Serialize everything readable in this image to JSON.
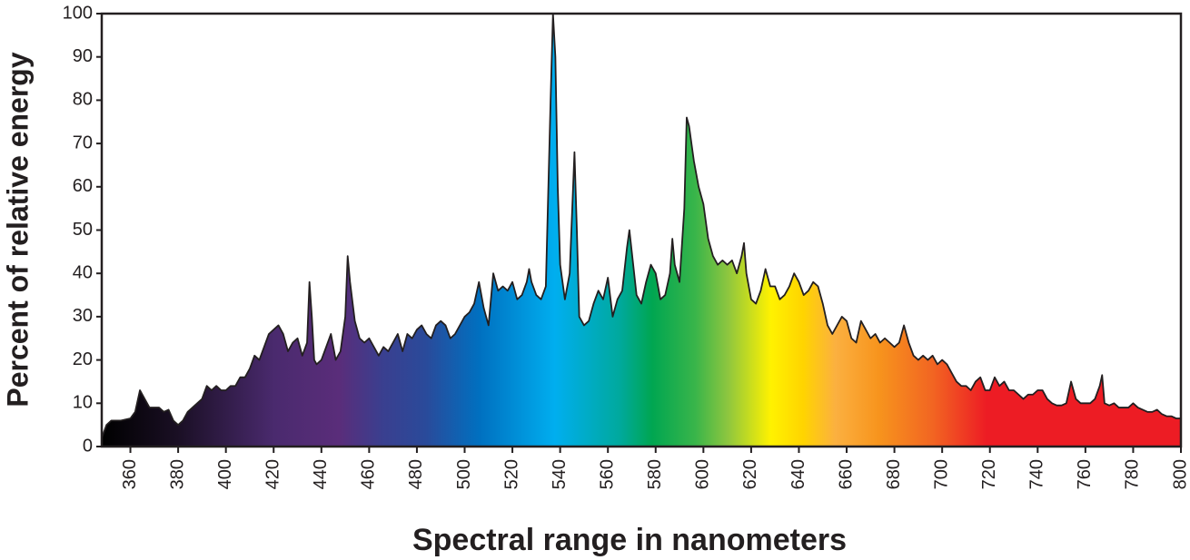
{
  "chart_data": {
    "type": "area",
    "xlabel": "Spectral range in nanometers",
    "ylabel": "Percent of relative energy",
    "xlim": [
      348,
      800
    ],
    "ylim": [
      0,
      100
    ],
    "xticks": [
      360,
      380,
      400,
      420,
      440,
      460,
      480,
      500,
      520,
      540,
      560,
      580,
      600,
      620,
      640,
      660,
      680,
      700,
      720,
      740,
      760,
      780,
      800
    ],
    "yticks": [
      0,
      10,
      20,
      30,
      40,
      50,
      60,
      70,
      80,
      90,
      100
    ],
    "x": [
      348,
      350,
      352,
      356,
      360,
      362,
      364,
      366,
      368,
      372,
      374,
      376,
      378,
      380,
      382,
      384,
      386,
      388,
      390,
      392,
      394,
      396,
      398,
      400,
      402,
      404,
      406,
      408,
      410,
      412,
      414,
      416,
      418,
      420,
      422,
      424,
      426,
      428,
      430,
      432,
      434,
      435,
      436,
      437,
      438,
      440,
      442,
      444,
      446,
      448,
      450,
      451,
      452,
      454,
      456,
      458,
      460,
      462,
      464,
      466,
      468,
      470,
      472,
      474,
      476,
      478,
      480,
      482,
      484,
      486,
      488,
      490,
      492,
      494,
      496,
      498,
      500,
      502,
      504,
      506,
      508,
      510,
      512,
      514,
      516,
      518,
      520,
      522,
      524,
      526,
      527,
      528,
      530,
      532,
      534,
      536,
      537,
      538,
      539,
      540,
      542,
      544,
      546,
      547,
      548,
      550,
      552,
      554,
      556,
      558,
      560,
      562,
      564,
      566,
      568,
      569,
      570,
      572,
      574,
      576,
      578,
      580,
      582,
      584,
      586,
      587,
      588,
      590,
      592,
      593,
      594,
      596,
      598,
      600,
      602,
      604,
      606,
      608,
      610,
      612,
      614,
      616,
      617,
      618,
      620,
      622,
      624,
      626,
      628,
      630,
      632,
      634,
      636,
      638,
      640,
      642,
      644,
      646,
      648,
      650,
      652,
      654,
      656,
      658,
      660,
      662,
      664,
      666,
      668,
      670,
      672,
      674,
      676,
      678,
      680,
      682,
      684,
      686,
      688,
      690,
      692,
      694,
      696,
      698,
      700,
      702,
      704,
      706,
      708,
      710,
      712,
      714,
      716,
      718,
      720,
      722,
      724,
      726,
      728,
      730,
      732,
      734,
      736,
      738,
      740,
      742,
      744,
      746,
      748,
      750,
      752,
      754,
      756,
      758,
      760,
      762,
      764,
      766,
      767,
      768,
      770,
      772,
      774,
      776,
      778,
      780,
      782,
      784,
      786,
      788,
      790,
      792,
      794,
      796,
      798,
      800
    ],
    "values": [
      2,
      5,
      6,
      6,
      6.5,
      8,
      13,
      11,
      9,
      9,
      8,
      8.5,
      6,
      5,
      6,
      8,
      9,
      10,
      11,
      14,
      13,
      14,
      13,
      13,
      14,
      14,
      16,
      16,
      18,
      21,
      20,
      23,
      26,
      27,
      28,
      26,
      22,
      24,
      25,
      21,
      24,
      38,
      30,
      20,
      19,
      20,
      23,
      26,
      20,
      22,
      30,
      44,
      38,
      29,
      25,
      24,
      25,
      23,
      21,
      23,
      22,
      24,
      26,
      22,
      26,
      25,
      27,
      28,
      26,
      25,
      28,
      29,
      28,
      25,
      26,
      28,
      30,
      31,
      33,
      38,
      32,
      28,
      40,
      36,
      37,
      36,
      38,
      34,
      35,
      38,
      41,
      38,
      35,
      34,
      37,
      80,
      100,
      90,
      60,
      42,
      34,
      40,
      68,
      50,
      30,
      28,
      29,
      33,
      36,
      34,
      39,
      30,
      34,
      36,
      46,
      50,
      45,
      35,
      33,
      38,
      42,
      40,
      34,
      35,
      40,
      48,
      42,
      38,
      55,
      76,
      74,
      66,
      60,
      56,
      48,
      44,
      42,
      43,
      42,
      43,
      40,
      44,
      47,
      40,
      34,
      33,
      36,
      41,
      37,
      37,
      34,
      35,
      37,
      40,
      38,
      35,
      36,
      38,
      37,
      33,
      28,
      26,
      28,
      30,
      29,
      25,
      24,
      29,
      27,
      25,
      26,
      24,
      25,
      24,
      23,
      24,
      28,
      24,
      21,
      20,
      21,
      20,
      21,
      19,
      20,
      19,
      17,
      15,
      14,
      14,
      13,
      15,
      16,
      13,
      13,
      16,
      14,
      15,
      13,
      13,
      12,
      11,
      12,
      12,
      13,
      13,
      11,
      10,
      9.5,
      9.5,
      10,
      15,
      11,
      10,
      10,
      10,
      11,
      14,
      16.5,
      10,
      9.5,
      10,
      9,
      9,
      9,
      10,
      9,
      8.5,
      8,
      8,
      8.5,
      7.5,
      7,
      7,
      6.5,
      6.5
    ]
  }
}
